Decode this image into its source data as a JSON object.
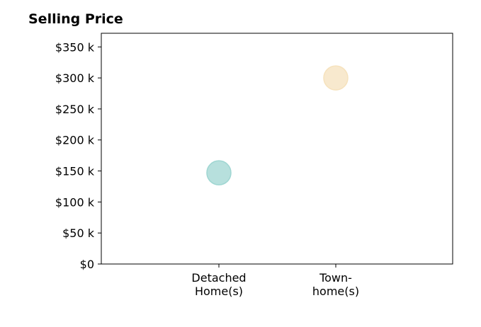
{
  "chart_data": {
    "type": "scatter",
    "title": "Selling Price",
    "xlabel": "",
    "ylabel": "",
    "categories": [
      "Detached|Home(s)",
      "Town-|home(s)"
    ],
    "y_ticks": [
      "$0",
      "$50 k",
      "$100 k",
      "$150 k",
      "$200 k",
      "$250 k",
      "$300 k",
      "$350 k"
    ],
    "y_tick_values": [
      0,
      50000,
      100000,
      150000,
      200000,
      250000,
      300000,
      350000
    ],
    "ylim": [
      0,
      372000
    ],
    "grid": false,
    "legend": "none",
    "points": [
      {
        "category": "Detached|Home(s)",
        "value": 147000,
        "color": "#9fd6d2"
      },
      {
        "category": "Town-|home(s)",
        "value": 300000,
        "color": "#f6e2bd"
      }
    ]
  }
}
